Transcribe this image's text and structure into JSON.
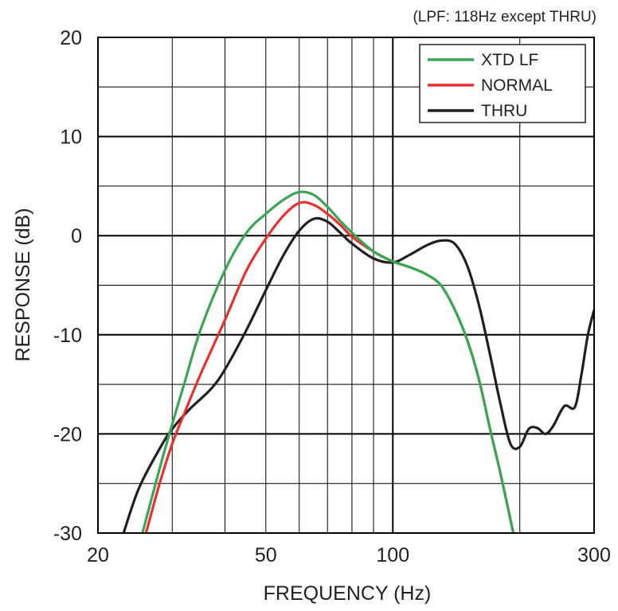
{
  "chart_data": {
    "type": "line",
    "title": "",
    "annotation": "(LPF: 118Hz except THRU)",
    "xlabel": "FREQUENCY (Hz)",
    "ylabel": "RESPONSE (dB)",
    "xscale": "log",
    "xlim": [
      20,
      300
    ],
    "ylim": [
      -30,
      20
    ],
    "x_tick_labels": [
      {
        "value": 20,
        "label": "20"
      },
      {
        "value": 50,
        "label": "50"
      },
      {
        "value": 100,
        "label": "100"
      },
      {
        "value": 300,
        "label": "300"
      }
    ],
    "y_tick_labels": [
      {
        "value": 20,
        "label": "20"
      },
      {
        "value": 10,
        "label": "10"
      },
      {
        "value": 0,
        "label": "0"
      },
      {
        "value": -10,
        "label": "-10"
      },
      {
        "value": -20,
        "label": "-20"
      },
      {
        "value": -30,
        "label": "-30"
      }
    ],
    "x_gridlines": [
      20,
      30,
      40,
      50,
      60,
      70,
      80,
      90,
      100,
      200,
      300
    ],
    "x_major_gridlines": [
      100
    ],
    "y_gridlines": [
      20,
      15,
      10,
      5,
      0,
      -5,
      -10,
      -15,
      -20,
      -25,
      -30
    ],
    "y_major_gridlines": [
      10,
      0,
      -10,
      -20
    ],
    "grid": true,
    "legend_position": "top-right",
    "series": [
      {
        "name": "XTD LF",
        "color": "#3aa655",
        "x": [
          25.5,
          28,
          30,
          32,
          35,
          40,
          45,
          50,
          55,
          60,
          65,
          70,
          75,
          80,
          90,
          100,
          110,
          120,
          130,
          140,
          150,
          160,
          170,
          180,
          193
        ],
        "y": [
          -30,
          -23.5,
          -19,
          -15,
          -9.5,
          -3.5,
          0.3,
          2.2,
          3.6,
          4.4,
          4.1,
          2.9,
          1.5,
          0.3,
          -1.6,
          -2.6,
          -3.2,
          -3.9,
          -5,
          -7.4,
          -10.5,
          -14.5,
          -19.5,
          -24,
          -30
        ]
      },
      {
        "name": "NORMAL",
        "color": "#e8312f",
        "x": [
          26,
          28,
          30,
          32,
          35,
          40,
          45,
          50,
          55,
          60,
          65,
          70,
          75,
          80,
          90,
          100,
          110,
          120,
          130,
          140,
          150,
          160,
          170,
          180,
          193
        ],
        "y": [
          -30,
          -25,
          -21,
          -18,
          -14,
          -8.5,
          -3.5,
          -0.3,
          2,
          3.3,
          3.1,
          2.2,
          1.1,
          -0.1,
          -1.6,
          -2.6,
          -3.2,
          -3.9,
          -5,
          -7.4,
          -10.5,
          -14.5,
          -19.5,
          -24,
          -30
        ]
      },
      {
        "name": "THRU",
        "color": "#231f20",
        "x": [
          23,
          25,
          28,
          30,
          33,
          37,
          40,
          45,
          50,
          55,
          60,
          65,
          70,
          75,
          80,
          90,
          100,
          110,
          120,
          130,
          140,
          150,
          160,
          170,
          180,
          190,
          200,
          210,
          220,
          230,
          240,
          255,
          270,
          280,
          290,
          300
        ],
        "y": [
          -30,
          -25.5,
          -21.5,
          -19.5,
          -17.5,
          -15.5,
          -13.5,
          -9.5,
          -5.5,
          -2,
          0.5,
          1.7,
          1.4,
          0.3,
          -0.8,
          -2.3,
          -2.7,
          -1.9,
          -1,
          -0.5,
          -0.8,
          -3,
          -7,
          -12,
          -17,
          -21,
          -21.3,
          -19.5,
          -19.4,
          -20,
          -19.2,
          -17.2,
          -17.3,
          -14,
          -10,
          -7.5
        ]
      }
    ]
  }
}
